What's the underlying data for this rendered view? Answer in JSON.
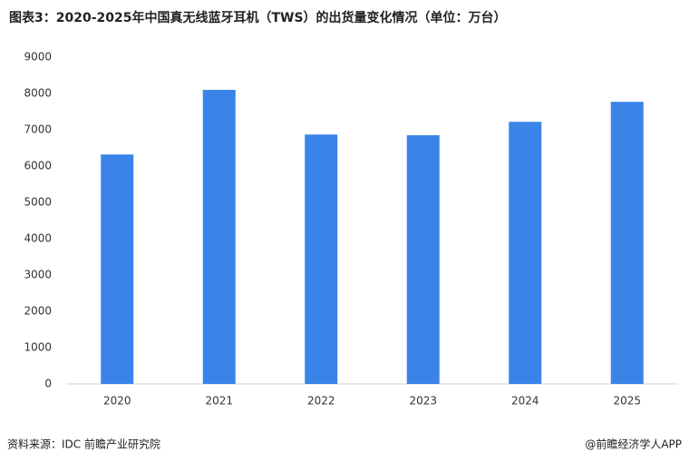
{
  "chart_data": {
    "type": "bar",
    "title": "图表3：2020-2025年中国真无线蓝牙耳机（TWS）的出货量变化情况（单位：万台）",
    "source": "资料来源：IDC 前瞻产业研究院",
    "credit": "@前瞻经济学人APP",
    "categories": [
      "2020",
      "2021",
      "2022",
      "2023",
      "2024",
      "2025"
    ],
    "values": [
      6320,
      8100,
      6870,
      6850,
      7220,
      7770
    ],
    "color": "#3a84e8",
    "ylim": [
      0,
      9000
    ],
    "yticks": [
      0,
      1000,
      2000,
      3000,
      4000,
      5000,
      6000,
      7000,
      8000,
      9000
    ],
    "grid": false
  }
}
